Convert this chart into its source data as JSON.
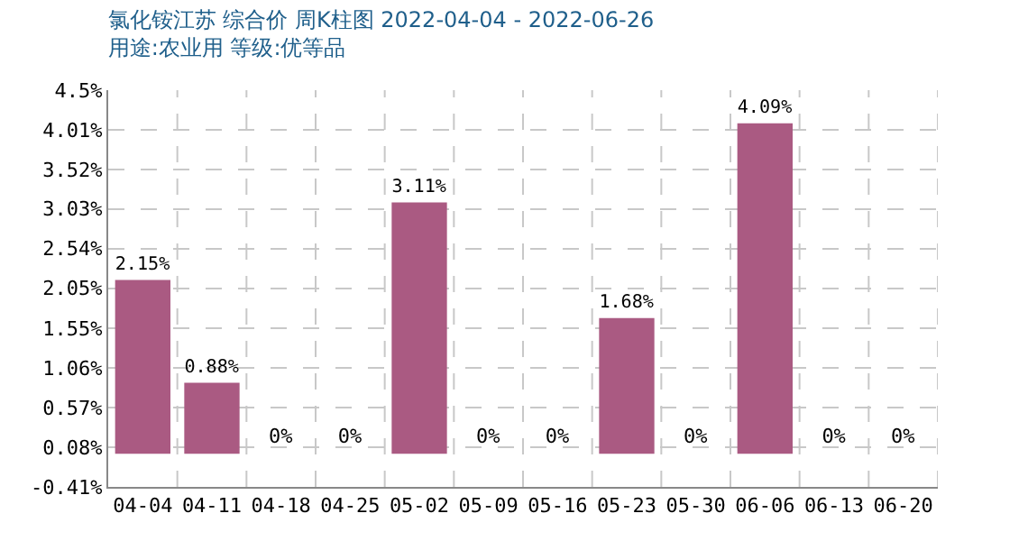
{
  "chart_data": {
    "type": "bar",
    "title": "氯化铵江苏 综合价 周K柱图 2022-04-04 - 2022-06-26",
    "subtitle": "用途:农业用 等级:优等品",
    "categories": [
      "04-04",
      "04-11",
      "04-18",
      "04-25",
      "05-02",
      "05-09",
      "05-16",
      "05-23",
      "05-30",
      "06-06",
      "06-13",
      "06-20"
    ],
    "values": [
      2.15,
      0.88,
      0,
      0,
      3.11,
      0,
      0,
      1.68,
      0,
      4.09,
      0,
      0
    ],
    "value_labels": [
      "2.15%",
      "0.88%",
      "0%",
      "0%",
      "3.11%",
      "0%",
      "0%",
      "1.68%",
      "0%",
      "4.09%",
      "0%",
      "0%"
    ],
    "color": "#aa5a82",
    "ylim": [
      -0.41,
      4.5
    ],
    "yticks": [
      {
        "value": -0.41,
        "label": "-0.41%"
      },
      {
        "value": 0.08,
        "label": "0.08%"
      },
      {
        "value": 0.57,
        "label": "0.57%"
      },
      {
        "value": 1.06,
        "label": "1.06%"
      },
      {
        "value": 1.55,
        "label": "1.55%"
      },
      {
        "value": 2.05,
        "label": "2.05%"
      },
      {
        "value": 2.54,
        "label": "2.54%"
      },
      {
        "value": 3.03,
        "label": "3.03%"
      },
      {
        "value": 3.52,
        "label": "3.52%"
      },
      {
        "value": 4.01,
        "label": "4.01%"
      },
      {
        "value": 4.5,
        "label": "4.5%"
      }
    ],
    "grid": true,
    "legend": false
  }
}
